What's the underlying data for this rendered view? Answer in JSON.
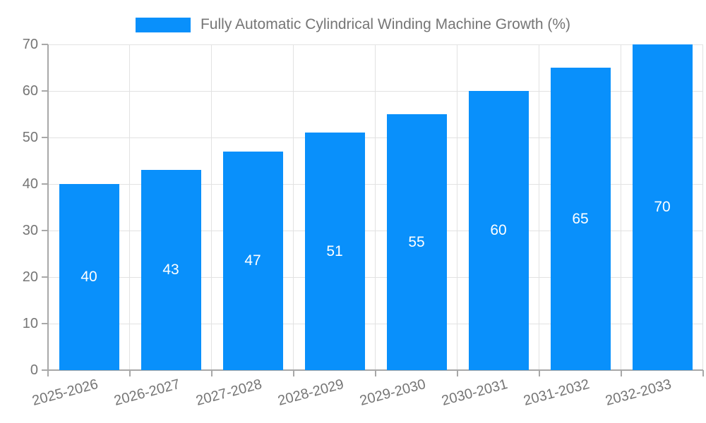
{
  "legend": {
    "label": "Fully Automatic Cylindrical Winding Machine Growth (%)"
  },
  "colors": {
    "bar": "#0990FB",
    "grid": "#E2E2E2",
    "axis": "#A8A8A8",
    "text": "#757575",
    "value_label": "#FFFFFF",
    "background": "#FFFFFF"
  },
  "chart_data": {
    "type": "bar",
    "categories": [
      "2025-2026",
      "2026-2027",
      "2027-2028",
      "2028-2029",
      "2029-2030",
      "2030-2031",
      "2031-2032",
      "2032-2033"
    ],
    "values": [
      40,
      43,
      47,
      51,
      55,
      60,
      65,
      70
    ],
    "title": "",
    "legend_label": "Fully Automatic Cylindrical Winding Machine Growth (%)",
    "xlabel": "",
    "ylabel": "",
    "ylim": [
      0,
      70
    ],
    "yticks": [
      0,
      10,
      20,
      30,
      40,
      50,
      60,
      70
    ],
    "grid": true,
    "legend_position": "top-center",
    "bar_value_labels": "inside-center",
    "x_label_rotation_deg": -15
  }
}
